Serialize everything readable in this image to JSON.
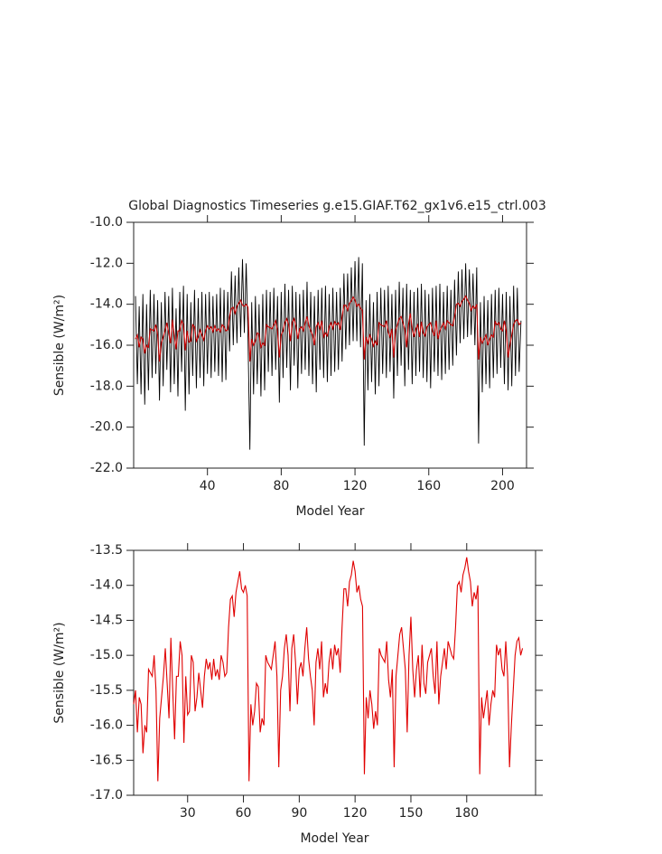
{
  "chart_data": [
    {
      "type": "line",
      "title": "Global Diagnostics Timeseries g.e15.GIAF.T62_gx1v6.e15_ctrl.003",
      "x_label": "Model Year",
      "y_label": "Sensible (W/m²)",
      "xlim": [
        0,
        213
      ],
      "xticks": [
        40,
        80,
        120,
        160,
        200
      ],
      "ylim": [
        -22,
        -10
      ],
      "yticks": [
        {
          "value": -22,
          "label": "-22.0"
        },
        {
          "value": -20,
          "label": "-20.0"
        },
        {
          "value": -18,
          "label": "-18.0"
        },
        {
          "value": -16,
          "label": "-16.0"
        },
        {
          "value": -14,
          "label": "-14.0"
        },
        {
          "value": -12,
          "label": "-12.0"
        },
        {
          "value": -10,
          "label": "-10.0"
        }
      ],
      "x": [
        1,
        2,
        3,
        4,
        5,
        6,
        7,
        8,
        9,
        10,
        11,
        12,
        13,
        14,
        15,
        16,
        17,
        18,
        19,
        20,
        21,
        22,
        23,
        24,
        25,
        26,
        27,
        28,
        29,
        30,
        31,
        32,
        33,
        34,
        35,
        36,
        37,
        38,
        39,
        40,
        41,
        42,
        43,
        44,
        45,
        46,
        47,
        48,
        49,
        50,
        51,
        52,
        53,
        54,
        55,
        56,
        57,
        58,
        59,
        60,
        61,
        62,
        63,
        64,
        65,
        66,
        67,
        68,
        69,
        70,
        71,
        72,
        73,
        74,
        75,
        76,
        77,
        78,
        79,
        80,
        81,
        82,
        83,
        84,
        85,
        86,
        87,
        88,
        89,
        90,
        91,
        92,
        93,
        94,
        95,
        96,
        97,
        98,
        99,
        100,
        101,
        102,
        103,
        104,
        105,
        106,
        107,
        108,
        109,
        110,
        111,
        112,
        113,
        114,
        115,
        116,
        117,
        118,
        119,
        120,
        121,
        122,
        123,
        124,
        125,
        126,
        127,
        128,
        129,
        130,
        131,
        132,
        133,
        134,
        135,
        136,
        137,
        138,
        139,
        140,
        141,
        142,
        143,
        144,
        145,
        146,
        147,
        148,
        149,
        150,
        151,
        152,
        153,
        154,
        155,
        156,
        157,
        158,
        159,
        160,
        161,
        162,
        163,
        164,
        165,
        166,
        167,
        168,
        169,
        170,
        171,
        172,
        173,
        174,
        175,
        176,
        177,
        178,
        179,
        180,
        181,
        182,
        183,
        184,
        185,
        186,
        187,
        188,
        189,
        190,
        191,
        192,
        193,
        194,
        195,
        196,
        197,
        198,
        199,
        200,
        201,
        202,
        203,
        204,
        205,
        206,
        207,
        208,
        209,
        210
      ],
      "series": [
        {
          "color": "#000000",
          "values": [
            -13.6,
            -17.9,
            -14.1,
            -18.4,
            -13.5,
            -18.9,
            -14.0,
            -18.2,
            -13.3,
            -17.6,
            -13.5,
            -17.4,
            -13.8,
            -18.7,
            -13.9,
            -18.0,
            -13.4,
            -17.2,
            -13.6,
            -18.3,
            -13.2,
            -17.9,
            -14.2,
            -18.5,
            -13.4,
            -17.3,
            -13.1,
            -19.2,
            -13.5,
            -18.4,
            -13.9,
            -17.5,
            -13.3,
            -18.1,
            -13.7,
            -17.6,
            -13.4,
            -18.0,
            -13.5,
            -17.4,
            -13.4,
            -17.6,
            -13.6,
            -17.3,
            -13.5,
            -17.5,
            -13.2,
            -17.8,
            -13.3,
            -17.7,
            -13.4,
            -16.3,
            -12.4,
            -16.0,
            -12.6,
            -15.9,
            -12.2,
            -15.6,
            -11.8,
            -15.4,
            -12.0,
            -15.7,
            -21.1,
            -13.9,
            -18.4,
            -13.6,
            -17.9,
            -14.0,
            -18.5,
            -13.5,
            -18.2,
            -13.3,
            -17.3,
            -13.4,
            -17.5,
            -13.2,
            -17.2,
            -13.6,
            -18.8,
            -13.4,
            -17.6,
            -13.0,
            -17.1,
            -13.3,
            -18.2,
            -13.1,
            -17.0,
            -13.4,
            -18.1,
            -13.5,
            -17.4,
            -13.3,
            -17.2,
            -12.9,
            -17.5,
            -13.4,
            -17.9,
            -13.6,
            -18.3,
            -13.3,
            -17.2,
            -13.2,
            -17.6,
            -13.1,
            -17.8,
            -13.5,
            -17.5,
            -13.2,
            -17.3,
            -13.4,
            -17.2,
            -13.2,
            -16.8,
            -12.5,
            -16.2,
            -12.5,
            -16.0,
            -12.2,
            -15.8,
            -11.9,
            -15.8,
            -11.7,
            -16.1,
            -12.0,
            -20.9,
            -13.8,
            -18.2,
            -13.5,
            -17.8,
            -13.9,
            -18.4,
            -13.4,
            -18.0,
            -13.2,
            -17.4,
            -13.3,
            -17.6,
            -13.1,
            -17.3,
            -13.5,
            -18.6,
            -13.3,
            -17.5,
            -12.9,
            -17.0,
            -13.2,
            -18.0,
            -13.0,
            -17.2,
            -13.3,
            -17.9,
            -13.4,
            -17.5,
            -13.2,
            -17.3,
            -13.0,
            -17.6,
            -13.3,
            -17.8,
            -13.5,
            -18.1,
            -13.2,
            -17.3,
            -13.1,
            -17.5,
            -13.0,
            -17.7,
            -13.4,
            -17.4,
            -13.1,
            -17.2,
            -13.3,
            -17.0,
            -12.8,
            -16.5,
            -12.4,
            -15.9,
            -12.3,
            -15.7,
            -12.0,
            -15.6,
            -12.3,
            -15.5,
            -12.5,
            -16.0,
            -12.2,
            -20.8,
            -13.9,
            -18.3,
            -13.6,
            -17.9,
            -13.8,
            -18.1,
            -13.5,
            -17.6,
            -13.3,
            -17.4,
            -13.2,
            -17.1,
            -13.5,
            -17.9,
            -13.4,
            -18.2,
            -13.6,
            -18.0,
            -13.1,
            -17.5,
            -13.2,
            -17.3,
            -14.8
          ]
        },
        {
          "color": "#cc0000",
          "values": [
            -15.7,
            -15.5,
            -16.1,
            -15.6,
            -15.7,
            -16.4,
            -16.0,
            -16.1,
            -15.2,
            -15.25,
            -15.3,
            -15.0,
            -15.5,
            -16.8,
            -15.9,
            -15.6,
            -15.3,
            -14.9,
            -15.4,
            -15.9,
            -14.75,
            -15.5,
            -16.2,
            -15.3,
            -15.3,
            -14.8,
            -15.0,
            -16.25,
            -15.3,
            -15.85,
            -15.8,
            -15.0,
            -15.1,
            -15.8,
            -15.6,
            -15.25,
            -15.5,
            -15.75,
            -15.3,
            -15.05,
            -15.2,
            -15.1,
            -15.35,
            -15.05,
            -15.3,
            -15.2,
            -15.35,
            -15.0,
            -15.1,
            -15.3,
            -15.25,
            -14.6,
            -14.2,
            -14.15,
            -14.45,
            -14.1,
            -13.95,
            -13.8,
            -14.05,
            -14.1,
            -14.0,
            -14.15,
            -16.8,
            -15.7,
            -16.0,
            -15.8,
            -15.4,
            -15.45,
            -16.1,
            -15.9,
            -16.0,
            -15.0,
            -15.1,
            -15.15,
            -15.2,
            -15.0,
            -14.8,
            -15.3,
            -16.6,
            -15.5,
            -15.3,
            -14.9,
            -14.7,
            -15.0,
            -15.8,
            -14.9,
            -14.7,
            -15.1,
            -15.7,
            -15.2,
            -15.1,
            -15.3,
            -14.9,
            -14.6,
            -15.05,
            -15.3,
            -15.5,
            -16.0,
            -15.1,
            -14.9,
            -15.2,
            -14.8,
            -15.6,
            -15.4,
            -15.55,
            -15.1,
            -14.9,
            -15.2,
            -14.85,
            -15.0,
            -14.9,
            -15.25,
            -14.6,
            -14.05,
            -14.05,
            -14.3,
            -13.95,
            -13.85,
            -13.65,
            -13.8,
            -14.1,
            -14.0,
            -14.2,
            -14.3,
            -16.7,
            -15.6,
            -15.9,
            -15.5,
            -15.7,
            -16.05,
            -15.8,
            -16.0,
            -14.9,
            -15.0,
            -15.05,
            -15.1,
            -14.8,
            -15.35,
            -15.6,
            -15.2,
            -16.6,
            -15.3,
            -15.0,
            -14.7,
            -14.6,
            -14.9,
            -15.2,
            -16.1,
            -15.0,
            -14.45,
            -15.2,
            -15.6,
            -15.2,
            -15.0,
            -15.6,
            -14.85,
            -15.4,
            -15.55,
            -15.1,
            -15.0,
            -14.9,
            -15.3,
            -15.55,
            -14.8,
            -15.7,
            -15.3,
            -15.1,
            -14.9,
            -15.2,
            -14.8,
            -14.9,
            -15.0,
            -15.05,
            -14.6,
            -14.0,
            -13.95,
            -14.1,
            -13.85,
            -13.75,
            -13.6,
            -13.8,
            -13.95,
            -14.3,
            -14.1,
            -14.2,
            -14.0,
            -16.7,
            -15.6,
            -15.9,
            -15.7,
            -15.5,
            -16.0,
            -15.7,
            -15.5,
            -15.6,
            -14.85,
            -15.0,
            -14.9,
            -15.2,
            -15.3,
            -14.8,
            -15.3,
            -16.6,
            -16.0,
            -15.5,
            -15.0,
            -14.8,
            -14.75,
            -15.0,
            -14.9
          ]
        }
      ]
    },
    {
      "type": "line",
      "x_label": "Model Year",
      "y_label": "Sensible (W/m²)",
      "xlim": [
        1,
        217
      ],
      "xticks": [
        30,
        60,
        90,
        120,
        150,
        180
      ],
      "ylim": [
        -17,
        -13.5
      ],
      "yticks": [
        {
          "value": -17,
          "label": "-17.0"
        },
        -16.5,
        {
          "value": -16,
          "label": "-16.0"
        },
        -15.5,
        {
          "value": -15,
          "label": "-15.0"
        },
        -14.5,
        {
          "value": -14,
          "label": "-14.0"
        },
        -13.5
      ],
      "x": [
        1,
        2,
        3,
        4,
        5,
        6,
        7,
        8,
        9,
        10,
        11,
        12,
        13,
        14,
        15,
        16,
        17,
        18,
        19,
        20,
        21,
        22,
        23,
        24,
        25,
        26,
        27,
        28,
        29,
        30,
        31,
        32,
        33,
        34,
        35,
        36,
        37,
        38,
        39,
        40,
        41,
        42,
        43,
        44,
        45,
        46,
        47,
        48,
        49,
        50,
        51,
        52,
        53,
        54,
        55,
        56,
        57,
        58,
        59,
        60,
        61,
        62,
        63,
        64,
        65,
        66,
        67,
        68,
        69,
        70,
        71,
        72,
        73,
        74,
        75,
        76,
        77,
        78,
        79,
        80,
        81,
        82,
        83,
        84,
        85,
        86,
        87,
        88,
        89,
        90,
        91,
        92,
        93,
        94,
        95,
        96,
        97,
        98,
        99,
        100,
        101,
        102,
        103,
        104,
        105,
        106,
        107,
        108,
        109,
        110,
        111,
        112,
        113,
        114,
        115,
        116,
        117,
        118,
        119,
        120,
        121,
        122,
        123,
        124,
        125,
        126,
        127,
        128,
        129,
        130,
        131,
        132,
        133,
        134,
        135,
        136,
        137,
        138,
        139,
        140,
        141,
        142,
        143,
        144,
        145,
        146,
        147,
        148,
        149,
        150,
        151,
        152,
        153,
        154,
        155,
        156,
        157,
        158,
        159,
        160,
        161,
        162,
        163,
        164,
        165,
        166,
        167,
        168,
        169,
        170,
        171,
        172,
        173,
        174,
        175,
        176,
        177,
        178,
        179,
        180,
        181,
        182,
        183,
        184,
        185,
        186,
        187,
        188,
        189,
        190,
        191,
        192,
        193,
        194,
        195,
        196,
        197,
        198,
        199,
        200,
        201,
        202,
        203,
        204,
        205,
        206,
        207,
        208,
        209,
        210
      ],
      "series": [
        {
          "color": "#e00000",
          "values": [
            -15.7,
            -15.5,
            -16.1,
            -15.6,
            -15.7,
            -16.4,
            -16.0,
            -16.1,
            -15.2,
            -15.25,
            -15.3,
            -15.0,
            -15.5,
            -16.8,
            -15.9,
            -15.6,
            -15.3,
            -14.9,
            -15.4,
            -15.9,
            -14.75,
            -15.5,
            -16.2,
            -15.3,
            -15.3,
            -14.8,
            -15.0,
            -16.25,
            -15.3,
            -15.85,
            -15.8,
            -15.0,
            -15.1,
            -15.8,
            -15.6,
            -15.25,
            -15.5,
            -15.75,
            -15.3,
            -15.05,
            -15.2,
            -15.1,
            -15.35,
            -15.05,
            -15.3,
            -15.2,
            -15.35,
            -15.0,
            -15.1,
            -15.3,
            -15.25,
            -14.6,
            -14.2,
            -14.15,
            -14.45,
            -14.1,
            -13.95,
            -13.8,
            -14.05,
            -14.1,
            -14.0,
            -14.15,
            -16.8,
            -15.7,
            -16.0,
            -15.8,
            -15.4,
            -15.45,
            -16.1,
            -15.9,
            -16.0,
            -15.0,
            -15.1,
            -15.15,
            -15.2,
            -15.0,
            -14.8,
            -15.3,
            -16.6,
            -15.5,
            -15.3,
            -14.9,
            -14.7,
            -15.0,
            -15.8,
            -14.9,
            -14.7,
            -15.1,
            -15.7,
            -15.2,
            -15.1,
            -15.3,
            -14.9,
            -14.6,
            -15.05,
            -15.3,
            -15.5,
            -16.0,
            -15.1,
            -14.9,
            -15.2,
            -14.8,
            -15.6,
            -15.4,
            -15.55,
            -15.1,
            -14.9,
            -15.2,
            -14.85,
            -15.0,
            -14.9,
            -15.25,
            -14.6,
            -14.05,
            -14.05,
            -14.3,
            -13.95,
            -13.85,
            -13.65,
            -13.8,
            -14.1,
            -14.0,
            -14.2,
            -14.3,
            -16.7,
            -15.6,
            -15.9,
            -15.5,
            -15.7,
            -16.05,
            -15.8,
            -16.0,
            -14.9,
            -15.0,
            -15.05,
            -15.1,
            -14.8,
            -15.35,
            -15.6,
            -15.2,
            -16.6,
            -15.3,
            -15.0,
            -14.7,
            -14.6,
            -14.9,
            -15.2,
            -16.1,
            -15.0,
            -14.45,
            -15.2,
            -15.6,
            -15.2,
            -15.0,
            -15.6,
            -14.85,
            -15.4,
            -15.55,
            -15.1,
            -15.0,
            -14.9,
            -15.3,
            -15.55,
            -14.8,
            -15.7,
            -15.3,
            -15.1,
            -14.9,
            -15.2,
            -14.8,
            -14.9,
            -15.0,
            -15.05,
            -14.6,
            -14.0,
            -13.95,
            -14.1,
            -13.85,
            -13.75,
            -13.6,
            -13.8,
            -13.95,
            -14.3,
            -14.1,
            -14.2,
            -14.0,
            -16.7,
            -15.6,
            -15.9,
            -15.7,
            -15.5,
            -16.0,
            -15.7,
            -15.5,
            -15.6,
            -14.85,
            -15.0,
            -14.9,
            -15.2,
            -15.3,
            -14.8,
            -15.3,
            -16.6,
            -16.0,
            -15.5,
            -15.0,
            -14.8,
            -14.75,
            -15.0,
            -14.9
          ]
        }
      ]
    }
  ]
}
